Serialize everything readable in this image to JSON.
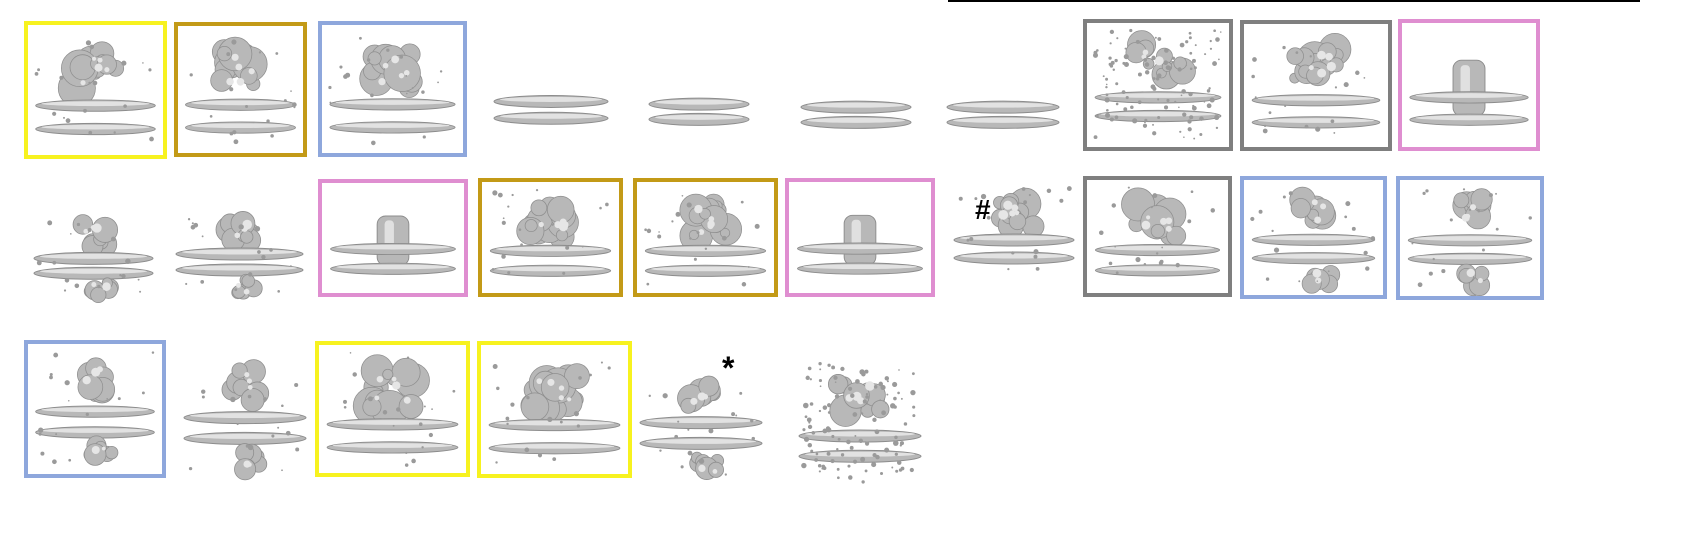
{
  "figure": {
    "marks": {
      "hash": "#",
      "star": "*"
    },
    "frame_colors": {
      "yellow": "#f7f21f",
      "gold": "#c39a17",
      "blue": "#8ea7dc",
      "gray": "#7f7f7f",
      "pink": "#df8ed0"
    },
    "density_map_color": "#b8b8b8",
    "rows": [
      {
        "tiles": [
          {
            "frame": "yellow",
            "content": "densities-top-bilayer"
          },
          {
            "frame": "gold",
            "content": "densities-top-bilayer"
          },
          {
            "frame": "blue",
            "content": "densities-top-bilayer"
          },
          {
            "frame": "none",
            "content": "bilayer-only"
          },
          {
            "frame": "none",
            "content": "bilayer-only"
          },
          {
            "frame": "none",
            "content": "bilayer-only"
          },
          {
            "frame": "none",
            "content": "bilayer-only"
          },
          {
            "frame": "gray",
            "content": "noisy-densities"
          },
          {
            "frame": "gray",
            "content": "densities-top-bilayer"
          },
          {
            "frame": "pink",
            "content": "channel-bilayer"
          }
        ]
      },
      {
        "tiles": [
          {
            "frame": "none",
            "content": "bilayer-with-densities"
          },
          {
            "frame": "none",
            "content": "bilayer-with-densities"
          },
          {
            "frame": "pink",
            "content": "channel-bilayer"
          },
          {
            "frame": "gold",
            "content": "densities-top-bilayer"
          },
          {
            "frame": "gold",
            "content": "densities-top-bilayer"
          },
          {
            "frame": "pink",
            "content": "channel-bilayer"
          },
          {
            "frame": "none",
            "content": "densities-top-bilayer",
            "mark": "hash"
          },
          {
            "frame": "gray",
            "content": "densities-top-bilayer"
          },
          {
            "frame": "blue",
            "content": "bilayer-with-densities"
          },
          {
            "frame": "blue",
            "content": "bilayer-with-densities"
          }
        ]
      },
      {
        "tiles": [
          {
            "frame": "blue",
            "content": "bilayer-with-densities"
          },
          {
            "frame": "none",
            "content": "bilayer-with-densities"
          },
          {
            "frame": "yellow",
            "content": "densities-top-bilayer"
          },
          {
            "frame": "yellow",
            "content": "densities-top-bilayer"
          },
          {
            "frame": "none",
            "content": "bilayer-with-densities",
            "mark": "star"
          },
          {
            "frame": "none",
            "content": "noisy-densities"
          }
        ]
      }
    ]
  }
}
